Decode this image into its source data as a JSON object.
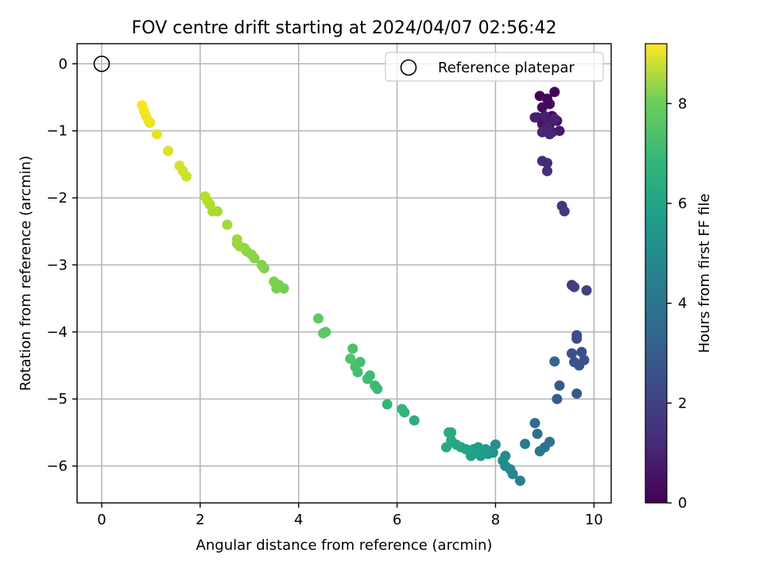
{
  "chart_data": {
    "type": "scatter",
    "title": "FOV centre drift starting at 2024/04/07 02:56:42",
    "xlabel": "Angular distance from reference (arcmin)",
    "ylabel": "Rotation from reference (arcmin)",
    "xlim": [
      -0.5,
      10.35
    ],
    "ylim": [
      -6.55,
      0.3
    ],
    "xticks": [
      0,
      2,
      4,
      6,
      8,
      10
    ],
    "yticks": [
      0,
      -1,
      -2,
      -3,
      -4,
      -5,
      -6
    ],
    "xtick_labels": [
      "0",
      "2",
      "4",
      "6",
      "8",
      "10"
    ],
    "ytick_labels": [
      "0",
      "−1",
      "−2",
      "−3",
      "−4",
      "−5",
      "−6"
    ],
    "grid": true,
    "legend": {
      "placement": "top-right",
      "entries": [
        "Reference platepar"
      ]
    },
    "colorbar": {
      "label": "Hours from first FF file",
      "range": [
        0,
        9.2
      ],
      "ticks": [
        0,
        2,
        4,
        6,
        8
      ],
      "tick_labels": [
        "0",
        "2",
        "4",
        "6",
        "8"
      ],
      "colormap": "viridis"
    },
    "reference_point": {
      "name": "Reference platepar",
      "x": 0.0,
      "y": 0.0
    },
    "series": [
      {
        "x": [
          8.9,
          9.2,
          9.05,
          9.1,
          8.95,
          9.15,
          8.85,
          9.0,
          9.25,
          8.95,
          9.1,
          9.0,
          9.3,
          9.05,
          9.15,
          8.8,
          9.0,
          9.2,
          9.1,
          8.95,
          9.05,
          8.95,
          9.05,
          9.05,
          9.35,
          9.4,
          9.55,
          9.6,
          9.85,
          9.65,
          9.65,
          9.75,
          9.55,
          9.8,
          9.6,
          9.7,
          9.2,
          9.65,
          9.3,
          9.25,
          8.8,
          8.85,
          9.1,
          9.0,
          8.9,
          8.6,
          8.5,
          8.35,
          8.3,
          8.2,
          8.15,
          8.0,
          7.95,
          7.9,
          7.85,
          7.8,
          7.75,
          7.7,
          7.65,
          7.6,
          7.55,
          7.5,
          7.4,
          7.3,
          7.2,
          7.1,
          7.05,
          7.1,
          7.0,
          8.2,
          6.35,
          6.15,
          6.1,
          5.8,
          5.6,
          5.55,
          5.45,
          5.4,
          5.25,
          5.2,
          5.15,
          5.1,
          5.05,
          4.55,
          4.5,
          4.4,
          3.7,
          3.6,
          3.55,
          3.5,
          3.3,
          3.25,
          3.1,
          3.05,
          2.95,
          2.9,
          2.8,
          2.75,
          2.75,
          2.55,
          2.35,
          2.25,
          2.2,
          2.15,
          2.1,
          1.72,
          1.65,
          1.58,
          1.35,
          1.12,
          0.98,
          0.95,
          0.9,
          0.86,
          0.82
        ],
        "y": [
          -0.48,
          -0.42,
          -0.52,
          -0.6,
          -0.65,
          -0.78,
          -0.8,
          -0.85,
          -0.85,
          -0.9,
          -0.9,
          -0.95,
          -1.0,
          -1.0,
          -1.02,
          -0.8,
          -0.78,
          -0.82,
          -1.05,
          -1.02,
          -0.95,
          -1.45,
          -1.48,
          -1.6,
          -2.12,
          -2.2,
          -3.3,
          -3.33,
          -3.38,
          -4.05,
          -4.1,
          -4.3,
          -4.32,
          -4.42,
          -4.45,
          -4.5,
          -4.44,
          -4.92,
          -4.8,
          -5.0,
          -5.36,
          -5.52,
          -5.64,
          -5.72,
          -5.78,
          -5.67,
          -6.22,
          -6.12,
          -6.05,
          -5.85,
          -5.92,
          -5.68,
          -5.8,
          -5.78,
          -5.82,
          -5.75,
          -5.78,
          -5.85,
          -5.72,
          -5.8,
          -5.75,
          -5.85,
          -5.75,
          -5.72,
          -5.68,
          -5.5,
          -5.5,
          -5.62,
          -5.72,
          -6.0,
          -5.32,
          -5.2,
          -5.15,
          -5.08,
          -4.85,
          -4.8,
          -4.65,
          -4.7,
          -4.45,
          -4.6,
          -4.52,
          -4.25,
          -4.4,
          -4.0,
          -4.02,
          -3.8,
          -3.35,
          -3.3,
          -3.35,
          -3.25,
          -3.05,
          -3.0,
          -2.9,
          -2.85,
          -2.8,
          -2.75,
          -2.72,
          -2.68,
          -2.62,
          -2.4,
          -2.2,
          -2.2,
          -2.1,
          -2.05,
          -1.98,
          -1.68,
          -1.6,
          -1.52,
          -1.3,
          -1.05,
          -0.88,
          -0.85,
          -0.78,
          -0.7,
          -0.62
        ],
        "hours": [
          0.0,
          0.1,
          0.15,
          0.2,
          0.25,
          0.3,
          0.35,
          0.4,
          0.45,
          0.5,
          0.55,
          0.6,
          0.65,
          0.7,
          0.75,
          0.8,
          0.85,
          0.9,
          0.95,
          1.0,
          0.9,
          1.1,
          1.15,
          1.2,
          1.45,
          1.5,
          1.7,
          1.75,
          1.8,
          2.1,
          2.15,
          2.2,
          2.25,
          2.3,
          2.35,
          2.4,
          3.0,
          2.5,
          2.6,
          2.7,
          3.3,
          3.4,
          3.5,
          3.55,
          3.6,
          3.8,
          4.0,
          4.2,
          4.3,
          4.4,
          4.5,
          4.6,
          4.7,
          4.8,
          4.9,
          4.95,
          5.0,
          5.05,
          5.1,
          5.15,
          5.2,
          5.25,
          5.3,
          5.35,
          5.45,
          5.55,
          5.6,
          5.55,
          5.6,
          4.45,
          5.75,
          5.95,
          6.0,
          6.1,
          6.2,
          6.25,
          6.3,
          6.35,
          6.4,
          6.45,
          6.5,
          6.55,
          6.6,
          6.8,
          6.85,
          6.9,
          7.2,
          7.25,
          7.3,
          7.35,
          7.4,
          7.45,
          7.5,
          7.55,
          7.6,
          7.65,
          7.7,
          7.75,
          7.8,
          7.9,
          8.0,
          8.05,
          8.1,
          8.15,
          8.2,
          8.5,
          8.55,
          8.6,
          8.7,
          8.8,
          8.9,
          8.95,
          9.0,
          9.05,
          9.1
        ]
      }
    ]
  }
}
